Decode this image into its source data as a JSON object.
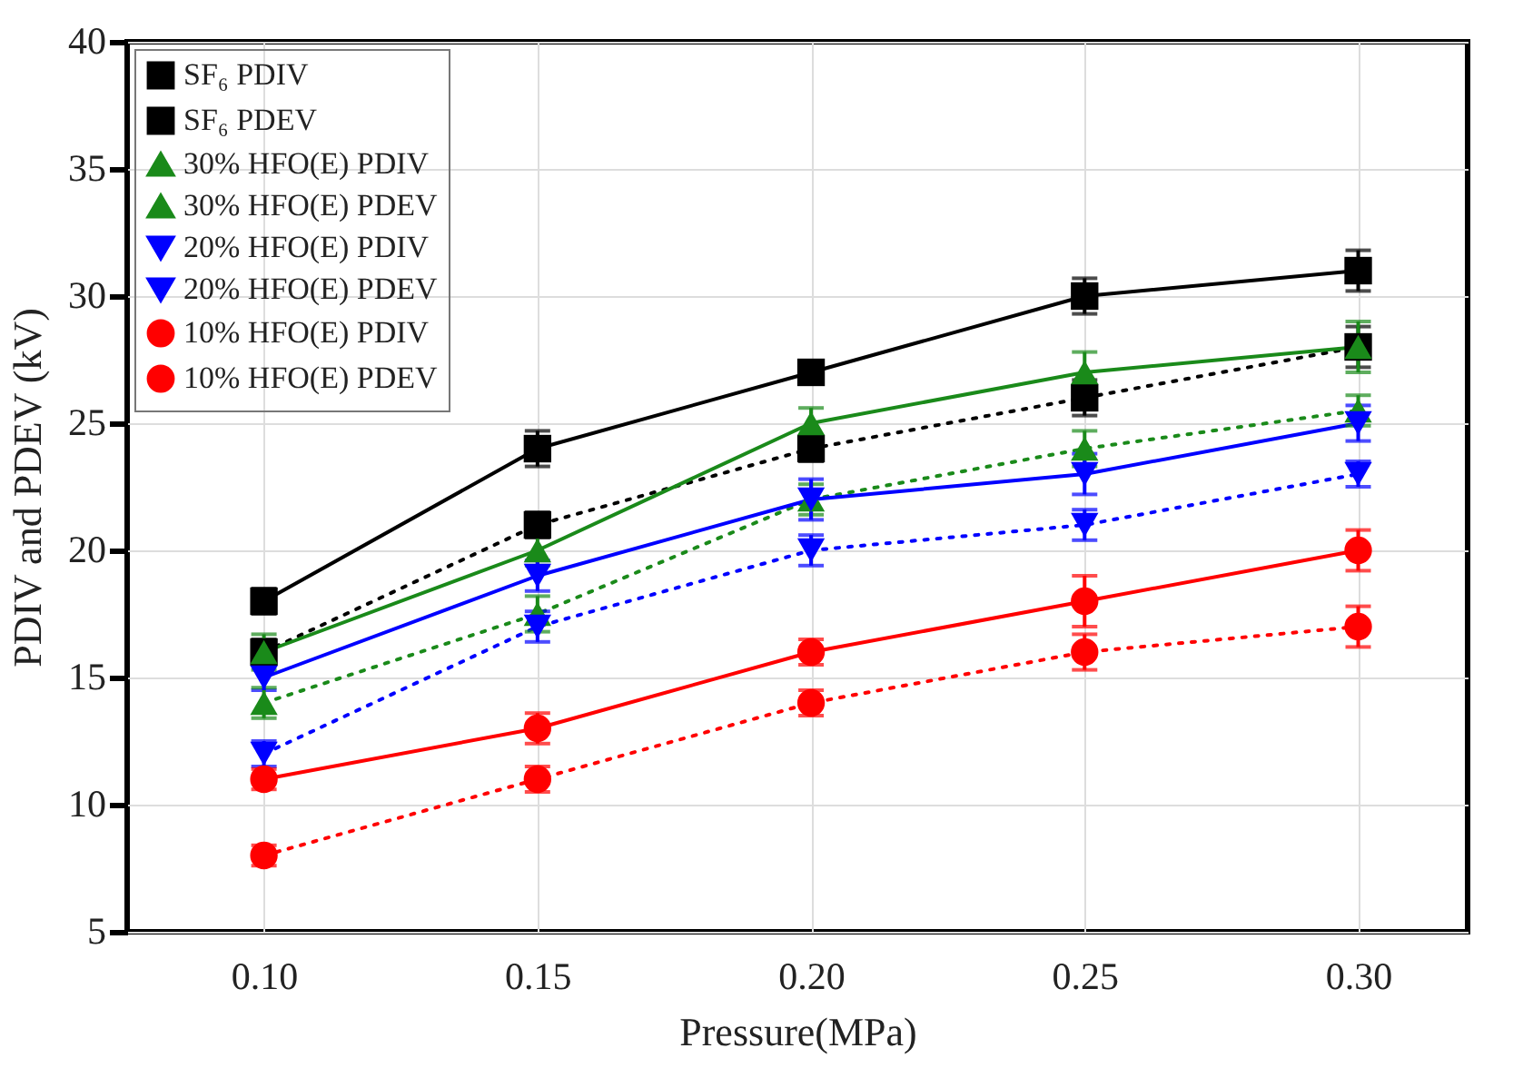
{
  "chart_data": {
    "type": "line",
    "xlabel": "Pressure(MPa)",
    "ylabel": "PDIV and PDEV (kV)",
    "x": [
      0.1,
      0.15,
      0.2,
      0.25,
      0.3
    ],
    "xlim": [
      0.075,
      0.32
    ],
    "xticks": [
      {
        "value": 0.1,
        "label": "0.10"
      },
      {
        "value": 0.15,
        "label": "0.15"
      },
      {
        "value": 0.2,
        "label": "0.20"
      },
      {
        "value": 0.25,
        "label": "0.25"
      },
      {
        "value": 0.3,
        "label": "0.30"
      }
    ],
    "ylim": [
      5,
      40
    ],
    "yticks": [
      5,
      10,
      15,
      20,
      25,
      30,
      35,
      40
    ],
    "grid": true,
    "legend": "top left",
    "series": [
      {
        "name": "SF₆ PDIV",
        "color": "#000000",
        "marker": "square",
        "line_style": "solid",
        "values": [
          18,
          24,
          27,
          30,
          31
        ],
        "errors": [
          0.5,
          0.7,
          0.4,
          0.7,
          0.8
        ]
      },
      {
        "name": "SF₆ PDEV",
        "color": "#000000",
        "marker": "square",
        "line_style": "dotted",
        "values": [
          16,
          21,
          24,
          26,
          28
        ],
        "errors": [
          0.5,
          0.5,
          0.5,
          0.7,
          0.8
        ]
      },
      {
        "name": "30% HFO(E) PDIV",
        "color": "#1a8a1a",
        "marker": "triangle",
        "line_style": "solid",
        "values": [
          16,
          20,
          25,
          27,
          28
        ],
        "errors": [
          0.7,
          0.6,
          0.6,
          0.8,
          1.0
        ]
      },
      {
        "name": "30% HFO(E) PDEV",
        "color": "#1a8a1a",
        "marker": "triangle",
        "line_style": "dotted",
        "values": [
          14,
          17.5,
          22,
          24,
          25.5
        ],
        "errors": [
          0.6,
          0.7,
          0.6,
          0.7,
          0.6
        ]
      },
      {
        "name": "20% HFO(E) PDIV",
        "color": "#0000ff",
        "marker": "triangle-down",
        "line_style": "solid",
        "values": [
          15,
          19,
          22,
          23,
          25
        ],
        "errors": [
          0.5,
          0.6,
          0.8,
          0.8,
          0.7
        ]
      },
      {
        "name": "20% HFO(E) PDEV",
        "color": "#0000ff",
        "marker": "triangle-down",
        "line_style": "dotted",
        "values": [
          12,
          17,
          20,
          21,
          23
        ],
        "errors": [
          0.5,
          0.6,
          0.6,
          0.6,
          0.5
        ]
      },
      {
        "name": "10% HFO(E) PDIV",
        "color": "#ff0000",
        "marker": "circle",
        "line_style": "solid",
        "values": [
          11,
          13,
          16,
          18,
          20
        ],
        "errors": [
          0.4,
          0.6,
          0.5,
          1.0,
          0.8
        ]
      },
      {
        "name": "10% HFO(E) PDEV",
        "color": "#ff0000",
        "marker": "circle",
        "line_style": "dotted",
        "values": [
          8,
          11,
          14,
          16,
          17
        ],
        "errors": [
          0.4,
          0.5,
          0.5,
          0.7,
          0.8
        ]
      }
    ]
  }
}
